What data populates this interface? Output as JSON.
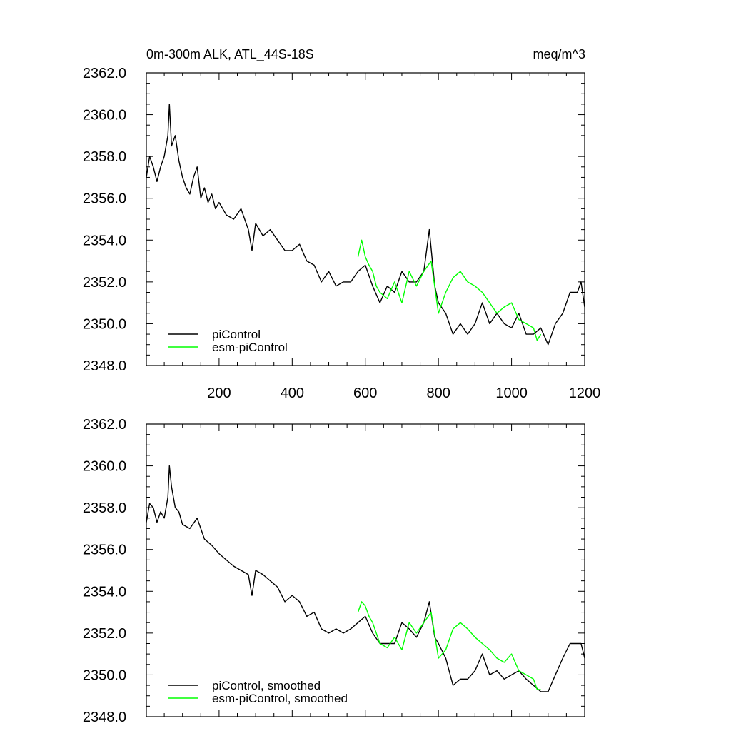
{
  "chart_data": [
    {
      "type": "line",
      "title": "0m-300m ALK, ATL_44S-18S",
      "units": "meq/m^3",
      "xlabel": "",
      "ylabel": "",
      "xlim": [
        1,
        1200
      ],
      "ylim": [
        2348.0,
        2362.0
      ],
      "xticks": [
        200,
        400,
        600,
        800,
        1000,
        1200
      ],
      "xtick_labels": [
        "200",
        "400",
        "600",
        "800",
        "1000",
        "1200"
      ],
      "yticks": [
        2348.0,
        2350.0,
        2352.0,
        2354.0,
        2356.0,
        2358.0,
        2360.0,
        2362.0
      ],
      "ytick_labels": [
        "2348.0",
        "2350.0",
        "2352.0",
        "2354.0",
        "2356.0",
        "2358.0",
        "2360.0",
        "2362.0"
      ],
      "legend_position": "bottom-left",
      "grid": false,
      "series": [
        {
          "name": "piControl",
          "color": "#000000",
          "x": [
            1,
            10,
            20,
            30,
            40,
            50,
            60,
            64,
            70,
            80,
            90,
            100,
            110,
            120,
            130,
            140,
            150,
            160,
            170,
            180,
            190,
            200,
            220,
            240,
            260,
            280,
            290,
            300,
            320,
            340,
            360,
            380,
            400,
            420,
            440,
            460,
            480,
            500,
            520,
            540,
            560,
            580,
            600,
            620,
            640,
            660,
            680,
            700,
            720,
            740,
            760,
            775,
            790,
            800,
            820,
            840,
            860,
            880,
            900,
            920,
            940,
            960,
            980,
            1000,
            1020,
            1040,
            1060,
            1080,
            1100,
            1120,
            1140,
            1160,
            1180,
            1190,
            1200
          ],
          "y": [
            2357.0,
            2358.0,
            2357.5,
            2356.8,
            2357.5,
            2358.0,
            2359.0,
            2360.5,
            2358.5,
            2359.0,
            2357.8,
            2357.0,
            2356.5,
            2356.2,
            2357.0,
            2357.5,
            2356.0,
            2356.5,
            2355.8,
            2356.2,
            2355.5,
            2355.8,
            2355.2,
            2355.0,
            2355.5,
            2354.5,
            2353.5,
            2354.8,
            2354.2,
            2354.5,
            2354.0,
            2353.5,
            2353.5,
            2353.8,
            2353.0,
            2352.8,
            2352.0,
            2352.5,
            2351.8,
            2352.0,
            2352.0,
            2352.5,
            2352.8,
            2351.8,
            2351.0,
            2351.8,
            2351.5,
            2352.5,
            2352.0,
            2352.0,
            2352.5,
            2354.5,
            2351.8,
            2351.0,
            2350.5,
            2349.5,
            2350.0,
            2349.5,
            2350.0,
            2351.0,
            2350.0,
            2350.5,
            2350.0,
            2349.8,
            2350.5,
            2349.5,
            2349.5,
            2349.8,
            2349.0,
            2350.0,
            2350.5,
            2351.5,
            2351.5,
            2352.0,
            2350.8
          ]
        },
        {
          "name": "esm-piControl",
          "color": "#00ff00",
          "x": [
            580,
            590,
            600,
            610,
            620,
            630,
            640,
            660,
            680,
            700,
            720,
            740,
            760,
            780,
            800,
            820,
            840,
            860,
            880,
            900,
            920,
            940,
            960,
            980,
            1000,
            1020,
            1040,
            1060,
            1070,
            1080
          ],
          "y": [
            2353.2,
            2354.0,
            2353.2,
            2352.8,
            2352.5,
            2351.8,
            2351.5,
            2351.2,
            2352.0,
            2351.0,
            2352.5,
            2351.8,
            2352.5,
            2353.0,
            2350.5,
            2351.5,
            2352.2,
            2352.5,
            2352.0,
            2351.8,
            2351.5,
            2351.0,
            2350.5,
            2350.8,
            2351.0,
            2350.2,
            2350.0,
            2349.8,
            2349.2,
            2349.5
          ]
        }
      ]
    },
    {
      "type": "line",
      "title": "",
      "xlabel": "",
      "ylabel": "",
      "xlim": [
        1,
        1200
      ],
      "ylim": [
        2348.0,
        2362.0
      ],
      "xticks": [
        200,
        400,
        600,
        800,
        1000,
        1200
      ],
      "yticks": [
        2348.0,
        2350.0,
        2352.0,
        2354.0,
        2356.0,
        2358.0,
        2360.0,
        2362.0
      ],
      "ytick_labels": [
        "2348.0",
        "2350.0",
        "2352.0",
        "2354.0",
        "2356.0",
        "2358.0",
        "2360.0",
        "2362.0"
      ],
      "legend_position": "bottom-left",
      "grid": false,
      "series": [
        {
          "name": "piControl, smoothed",
          "color": "#000000",
          "x": [
            1,
            10,
            20,
            30,
            40,
            50,
            60,
            64,
            70,
            80,
            90,
            100,
            120,
            140,
            160,
            180,
            200,
            220,
            240,
            260,
            280,
            290,
            300,
            320,
            340,
            360,
            380,
            400,
            420,
            440,
            460,
            480,
            500,
            520,
            540,
            560,
            580,
            600,
            620,
            640,
            660,
            680,
            700,
            720,
            740,
            760,
            775,
            790,
            800,
            820,
            840,
            860,
            880,
            900,
            920,
            940,
            960,
            980,
            1000,
            1020,
            1040,
            1060,
            1080,
            1100,
            1120,
            1140,
            1160,
            1180,
            1190,
            1200
          ],
          "y": [
            2357.3,
            2358.2,
            2358.0,
            2357.3,
            2357.8,
            2357.5,
            2358.5,
            2360.0,
            2359.0,
            2358.0,
            2357.8,
            2357.2,
            2357.0,
            2357.5,
            2356.5,
            2356.2,
            2355.8,
            2355.5,
            2355.2,
            2355.0,
            2354.8,
            2353.8,
            2355.0,
            2354.8,
            2354.5,
            2354.2,
            2353.5,
            2353.8,
            2353.5,
            2352.8,
            2353.0,
            2352.2,
            2352.0,
            2352.2,
            2352.0,
            2352.2,
            2352.5,
            2352.8,
            2352.0,
            2351.5,
            2351.5,
            2351.5,
            2352.5,
            2352.2,
            2351.8,
            2352.5,
            2353.5,
            2351.8,
            2351.5,
            2350.8,
            2349.5,
            2349.8,
            2349.8,
            2350.2,
            2351.0,
            2350.0,
            2350.2,
            2349.8,
            2350.0,
            2350.2,
            2349.8,
            2349.5,
            2349.2,
            2349.2,
            2350.0,
            2350.8,
            2351.5,
            2351.5,
            2351.5,
            2350.8
          ]
        },
        {
          "name": "esm-piControl, smoothed",
          "color": "#00ff00",
          "x": [
            580,
            590,
            600,
            610,
            620,
            630,
            640,
            660,
            680,
            700,
            720,
            740,
            760,
            780,
            800,
            820,
            840,
            860,
            880,
            900,
            920,
            940,
            960,
            980,
            1000,
            1020,
            1040,
            1060,
            1070,
            1080
          ],
          "y": [
            2353.0,
            2353.5,
            2353.3,
            2352.8,
            2352.5,
            2352.0,
            2351.5,
            2351.3,
            2351.8,
            2351.2,
            2352.5,
            2352.0,
            2352.5,
            2353.0,
            2350.8,
            2351.2,
            2352.2,
            2352.5,
            2352.2,
            2351.8,
            2351.5,
            2351.2,
            2350.8,
            2350.6,
            2351.0,
            2350.2,
            2350.0,
            2349.8,
            2349.3,
            2349.3
          ]
        }
      ]
    }
  ]
}
